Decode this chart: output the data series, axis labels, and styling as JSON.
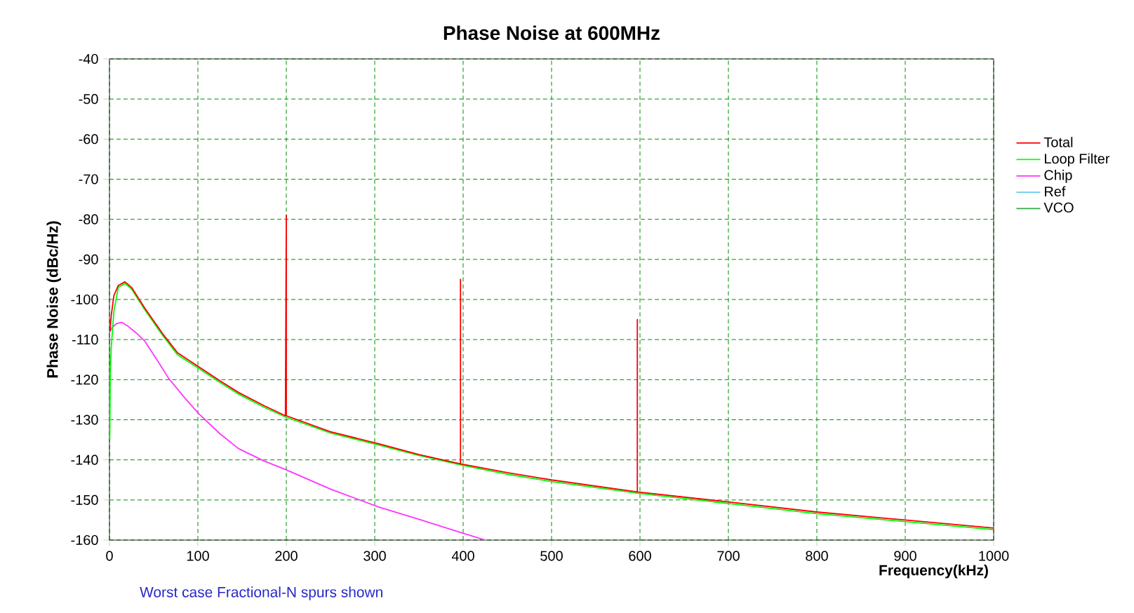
{
  "chart_data": {
    "type": "line",
    "title": "Phase Noise at  600MHz",
    "xlabel": "Frequency(kHz)",
    "ylabel": "Phase Noise (dBc/Hz)",
    "annotations": [
      "Worst case Fractional-N spurs shown"
    ],
    "xlim": [
      0,
      1000
    ],
    "ylim": [
      -160,
      -40
    ],
    "xticks": [
      0,
      100,
      200,
      300,
      400,
      500,
      600,
      700,
      800,
      900,
      1000
    ],
    "yticks": [
      -160,
      -150,
      -140,
      -130,
      -120,
      -110,
      -100,
      -90,
      -80,
      -70,
      -60,
      -50,
      -40
    ],
    "grid": true,
    "legend": "right",
    "marker": "none",
    "line_style": "solid",
    "series": [
      {
        "name": "Total",
        "color": "#ff0000",
        "x": [
          0.5,
          2,
          5,
          10,
          17.5,
          25,
          40,
          60,
          77,
          101,
          125,
          146,
          175,
          199,
          200,
          200,
          250,
          305,
          350,
          397,
          397,
          397,
          450,
          500,
          597,
          597,
          597,
          700,
          800,
          900,
          1000
        ],
        "values": [
          -108,
          -104,
          -99,
          -96.5,
          -95.6,
          -97,
          -102.2,
          -108.5,
          -113.3,
          -116.8,
          -120.3,
          -123.2,
          -126.5,
          -129,
          -79,
          -129,
          -133,
          -136,
          -138.7,
          -141,
          -95,
          -141,
          -143.2,
          -145,
          -148,
          -105,
          -148,
          -150.5,
          -153,
          -155,
          -157
        ]
      },
      {
        "name": "Loop Filter",
        "color": "#00ff00",
        "x": [
          0.3,
          1,
          2,
          5,
          10,
          17.5,
          25,
          40,
          60,
          77,
          101,
          125,
          146,
          175,
          199,
          250,
          305,
          350,
          400,
          450,
          500,
          600,
          700,
          800,
          900,
          1000
        ],
        "values": [
          -135,
          -118,
          -112,
          -103,
          -97,
          -96,
          -97.4,
          -102.6,
          -108.9,
          -113.8,
          -117.2,
          -120.7,
          -123.6,
          -126.9,
          -129.3,
          -133.3,
          -136.3,
          -138.9,
          -141.4,
          -143.6,
          -145.4,
          -148.4,
          -150.9,
          -153.4,
          -155.4,
          -157.4
        ]
      },
      {
        "name": "Chip",
        "color": "#ff33ff",
        "x": [
          0.5,
          3,
          8,
          13.8,
          20,
          30,
          40,
          55,
          67,
          85,
          101,
          125,
          146,
          175,
          199,
          250,
          305,
          350,
          400,
          425
        ],
        "values": [
          -108,
          -107,
          -106,
          -105.7,
          -106.5,
          -108.3,
          -110.4,
          -115.5,
          -119.7,
          -124.5,
          -128.5,
          -133.5,
          -137.2,
          -140.3,
          -142.4,
          -147.3,
          -151.8,
          -154.8,
          -158.3,
          -160
        ]
      },
      {
        "name": "Ref",
        "color": "#66ccee"
      },
      {
        "name": "VCO",
        "color": "#33aa44"
      }
    ]
  }
}
